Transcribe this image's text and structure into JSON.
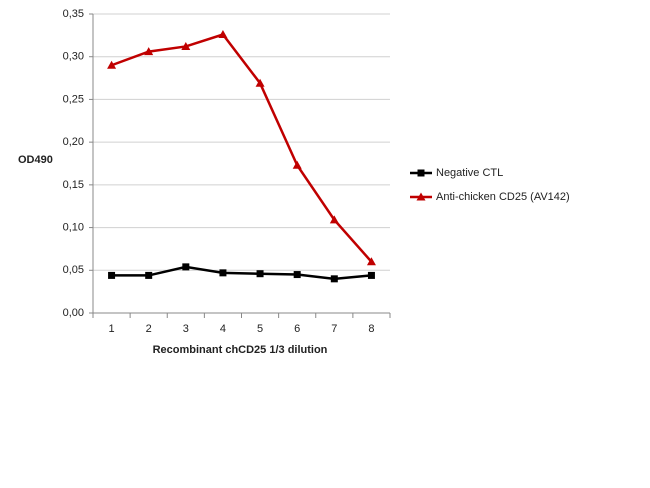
{
  "chart_data": {
    "type": "line",
    "xlabel": "Recombinant chCD25 1/3 dilution",
    "ylabel": "OD490",
    "categories": [
      "1",
      "2",
      "3",
      "4",
      "5",
      "6",
      "7",
      "8"
    ],
    "series": [
      {
        "name": "Negative CTL",
        "color": "#000000",
        "marker": "square",
        "values": [
          0.044,
          0.044,
          0.054,
          0.047,
          0.046,
          0.045,
          0.04,
          0.044
        ]
      },
      {
        "name": "Anti-chicken CD25 (AV142)",
        "color": "#c00000",
        "marker": "triangle",
        "values": [
          0.29,
          0.306,
          0.312,
          0.326,
          0.269,
          0.173,
          0.109,
          0.06
        ]
      }
    ],
    "ylim": [
      0,
      0.35
    ],
    "yticks": [
      {
        "value": 0,
        "label": "0,00"
      },
      {
        "value": 0.05,
        "label": "0,05"
      },
      {
        "value": 0.1,
        "label": "0,10"
      },
      {
        "value": 0.15,
        "label": "0,15"
      },
      {
        "value": 0.2,
        "label": "0,20"
      },
      {
        "value": 0.25,
        "label": "0,25"
      },
      {
        "value": 0.3,
        "label": "0,30"
      },
      {
        "value": 0.35,
        "label": "0,35"
      }
    ],
    "grid": true,
    "legend": "right"
  }
}
